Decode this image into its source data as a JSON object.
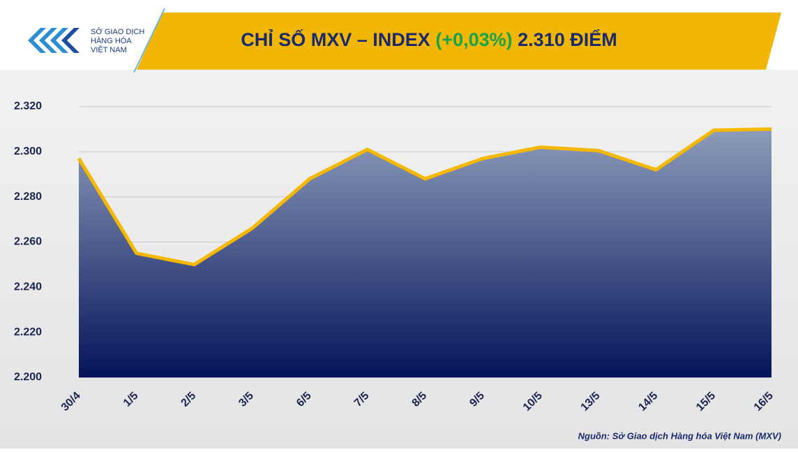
{
  "chart_data": {
    "type": "area",
    "title": {
      "part1": "CHỈ SỐ MXV – INDEX",
      "change": "(+0,03%)",
      "part2": "2.310 ĐIỂM"
    },
    "logo": [
      "SỞ GIAO DỊCH",
      "HÀNG HÓA",
      "VIỆT NAM"
    ],
    "source": "Nguồn: Sở Giao dịch Hàng hóa Việt Nam (MXV)",
    "categories": [
      "30/4",
      "1/5",
      "2/5",
      "3/5",
      "6/5",
      "7/5",
      "8/5",
      "9/5",
      "10/5",
      "13/5",
      "14/5",
      "15/5",
      "16/5"
    ],
    "values": [
      2297,
      2255,
      2250,
      2266,
      2288,
      2301,
      2288,
      2297,
      2302,
      2300.5,
      2292,
      2309.5,
      2310
    ],
    "color": "#f5b800",
    "area_colors": [
      "#8d9cba",
      "#04145a"
    ],
    "ylim": [
      2200,
      2320
    ],
    "yticks": [
      {
        "value": 2200,
        "label": "2.200"
      },
      {
        "value": 2220,
        "label": "2.220"
      },
      {
        "value": 2240,
        "label": "2.240"
      },
      {
        "value": 2260,
        "label": "2.260"
      },
      {
        "value": 2280,
        "label": "2.280"
      },
      {
        "value": 2300,
        "label": "2.300"
      },
      {
        "value": 2320,
        "label": "2.320"
      }
    ],
    "grid": true
  }
}
